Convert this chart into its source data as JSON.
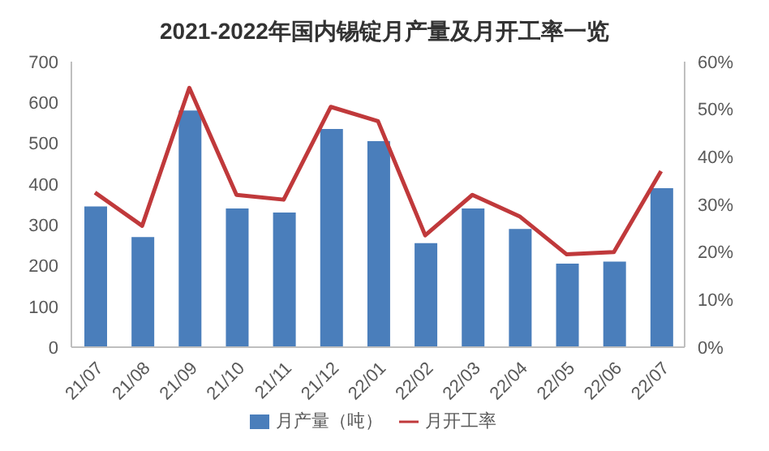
{
  "chart_data": {
    "type": "bar",
    "title": "2021-2022年国内锡锭月产量及月开工率一览",
    "categories": [
      "21/07",
      "21/08",
      "21/09",
      "21/10",
      "21/11",
      "21/12",
      "22/01",
      "22/02",
      "22/03",
      "22/04",
      "22/05",
      "22/06",
      "22/07"
    ],
    "series": [
      {
        "name": "月产量（吨）",
        "color": "#4a7ebb",
        "values": [
          345,
          270,
          580,
          340,
          330,
          535,
          505,
          255,
          340,
          290,
          205,
          210,
          390
        ]
      },
      {
        "name": "月开工率",
        "type": "line",
        "axis": "y2",
        "color": "#c0393b",
        "marker": "none",
        "values": [
          32.5,
          25.5,
          54.5,
          32,
          31,
          50.5,
          47.5,
          23.5,
          32,
          27.5,
          19.5,
          20,
          37
        ]
      }
    ],
    "ylim": [
      0,
      700
    ],
    "yticks": [
      0,
      100,
      200,
      300,
      400,
      500,
      600,
      700
    ],
    "y2lim": [
      0,
      60
    ],
    "y2ticks": [
      {
        "value": 0,
        "label": "0%"
      },
      {
        "value": 10,
        "label": "10%"
      },
      {
        "value": 20,
        "label": "20%"
      },
      {
        "value": 30,
        "label": "30%"
      },
      {
        "value": 40,
        "label": "40%"
      },
      {
        "value": 50,
        "label": "50%"
      },
      {
        "value": 60,
        "label": "60%"
      }
    ],
    "grid": false,
    "legend": "bottom"
  }
}
